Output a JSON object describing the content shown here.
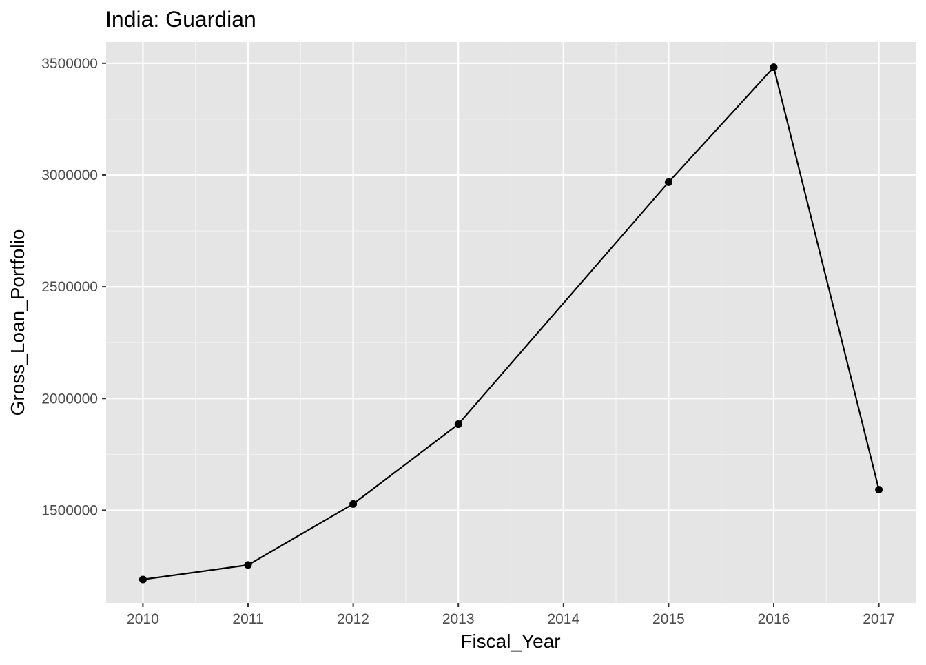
{
  "chart_data": {
    "type": "line",
    "title": "India:  Guardian",
    "xlabel": "Fiscal_Year",
    "ylabel": "Gross_Loan_Portfolio",
    "x": [
      2010,
      2011,
      2012,
      2013,
      2015,
      2016,
      2017
    ],
    "series": [
      {
        "values": [
          1190000,
          1255000,
          1528000,
          1885000,
          2968000,
          3482000,
          1592000
        ]
      }
    ],
    "xticks": [
      "2010",
      "2011",
      "2012",
      "2013",
      "2014",
      "2015",
      "2016",
      "2017"
    ],
    "yticks": [
      "1500000",
      "2000000",
      "2500000",
      "3000000",
      "3500000"
    ],
    "xlim": [
      2009.65,
      2017.35
    ],
    "ylim": [
      1085000,
      3595000
    ],
    "grid": true,
    "legend": "none",
    "colors": {
      "panel_background": "#e5e5e5",
      "grid_major": "#ffffff",
      "line": "#000000",
      "point": "#000000",
      "tick_text": "#4d4d4d"
    }
  }
}
